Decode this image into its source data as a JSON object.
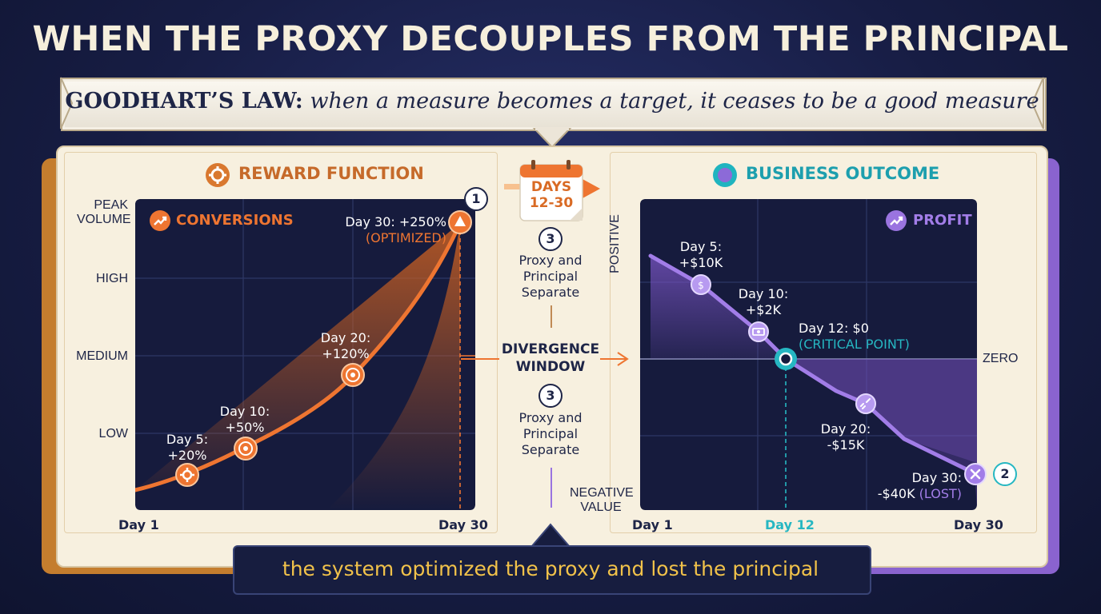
{
  "title": "WHEN THE PROXY DECOUPLES FROM THE PRINCIPAL",
  "law": {
    "term": "GOODHART’S LAW:",
    "statement": "when a measure becomes a target, it ceases to be a good measure"
  },
  "left_panel": {
    "heading": "REWARD FUNCTION",
    "chart_label": "CONVERSIONS",
    "y_levels": [
      "PEAK VOLUME",
      "HIGH",
      "MEDIUM",
      "LOW"
    ],
    "x_start": "Day 1",
    "x_end": "Day 30",
    "points": [
      {
        "label_line1": "Day 5:",
        "label_line2": "+20%",
        "icon": "gear-icon"
      },
      {
        "label_line1": "Day 10:",
        "label_line2": "+50%",
        "icon": "target-icon"
      },
      {
        "label_line1": "Day 20:",
        "label_line2": "+120%",
        "icon": "target-icon"
      },
      {
        "label_line1": "Day 30: +250%",
        "label_line2": "(OPTIMIZED)",
        "icon": "triangle-icon"
      }
    ],
    "badge": "1"
  },
  "middle": {
    "calendar_line1": "DAYS",
    "calendar_line2": "12-30",
    "step_badge": "3",
    "step_text_line1": "Proxy and",
    "step_text_line2": "Principal",
    "step_text_line3": "Separate",
    "window_line1": "DIVERGENCE",
    "window_line2": "WINDOW"
  },
  "right_panel": {
    "heading": "BUSINESS OUTCOME",
    "chart_label": "PROFIT",
    "y_top": "POSITIVE",
    "y_zero": "ZERO",
    "y_bottom_line1": "NEGATIVE",
    "y_bottom_line2": "VALUE",
    "x_start": "Day 1",
    "x_mid": "Day 12",
    "x_end": "Day 30",
    "points": [
      {
        "label_line1": "Day 5:",
        "label_line2": "+$10K",
        "icon": "dollar-icon"
      },
      {
        "label_line1": "Day 10:",
        "label_line2": "+$2K",
        "icon": "cash-icon"
      },
      {
        "label_line1": "Day 12: $0",
        "label_line2": "(CRITICAL POINT)",
        "icon": "ring-icon"
      },
      {
        "label_line1": "Day 20:",
        "label_line2": "-$15K",
        "icon": "broken-link-icon"
      },
      {
        "label_line1": "Day 30:",
        "label_line2_a": "-$40K ",
        "label_line2_b": "(LOST)",
        "icon": "x-icon"
      }
    ],
    "badge": "2"
  },
  "bottom_message": "the system optimized the proxy and lost the principal",
  "colors": {
    "orange": "#ee7531",
    "purple": "#9a74e0",
    "teal": "#26b7c2",
    "navy": "#1e2547",
    "gold": "#f1c24a"
  }
}
